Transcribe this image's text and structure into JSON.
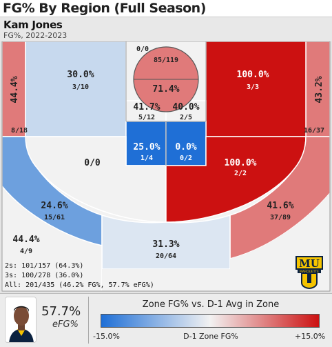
{
  "title": "FG% By Region (Full Season)",
  "player": {
    "name": "Kam Jones",
    "subtitle": "FG%, 2022-2023"
  },
  "zones": [
    {
      "id": "left-corner",
      "pct": "44.4%",
      "frac": "8/18",
      "color": "#e07a7a",
      "text": "#222"
    },
    {
      "id": "left-wing-upper",
      "pct": "30.0%",
      "frac": "3/10",
      "color": "#c7d9ee",
      "text": "#222"
    },
    {
      "id": "top-small",
      "pct": "",
      "frac": "0/0",
      "color": "#f2f2f2",
      "text": "#222"
    },
    {
      "id": "rim",
      "pct": "71.4%",
      "frac": "85/119",
      "color": "#e07a7a",
      "text": "#222"
    },
    {
      "id": "right-wing-upper",
      "pct": "100.0%",
      "frac": "3/3",
      "color": "#cc1111",
      "text": "#ffffff"
    },
    {
      "id": "right-corner",
      "pct": "43.2%",
      "frac": "16/37",
      "color": "#e07a7a",
      "text": "#222"
    },
    {
      "id": "paint-left",
      "pct": "41.7%",
      "frac": "5/12",
      "color": "#f2f2f2",
      "text": "#222"
    },
    {
      "id": "paint-right",
      "pct": "40.0%",
      "frac": "2/5",
      "color": "#f2f2f2",
      "text": "#222"
    },
    {
      "id": "mid-left",
      "pct": "25.0%",
      "frac": "1/4",
      "color": "#1f6fd6",
      "text": "#ffffff"
    },
    {
      "id": "mid-right",
      "pct": "0.0%",
      "frac": "0/2",
      "color": "#1f6fd6",
      "text": "#ffffff"
    },
    {
      "id": "left-elbow",
      "pct": "",
      "frac": "0/0",
      "color": "#f2f2f2",
      "text": "#222"
    },
    {
      "id": "right-elbow",
      "pct": "100.0%",
      "frac": "2/2",
      "color": "#cc1111",
      "text": "#ffffff"
    },
    {
      "id": "left-wing-three",
      "pct": "24.6%",
      "frac": "15/61",
      "color": "#6da0de",
      "text": "#222"
    },
    {
      "id": "right-wing-three",
      "pct": "41.6%",
      "frac": "37/89",
      "color": "#e07a7a",
      "text": "#222"
    },
    {
      "id": "left-deep",
      "pct": "44.4%",
      "frac": "4/9",
      "color": "#f2f2f2",
      "text": "#222"
    },
    {
      "id": "top-three",
      "pct": "31.3%",
      "frac": "20/64",
      "color": "#dce6f2",
      "text": "#222"
    }
  ],
  "summary": {
    "twos": "2s: 101/157 (64.3%)",
    "threes": "3s: 100/278 (36.0%)",
    "all": "All: 201/435 (46.2% FG%, 57.7% eFG%)"
  },
  "efg": {
    "value": "57.7%",
    "label": "eFG%"
  },
  "legend": {
    "title": "Zone FG% vs. D-1 Avg in Zone",
    "min": "-15.0%",
    "mid": "D-1 Zone FG%",
    "max": "+15.0%",
    "low_color": "#1f6fd6",
    "mid_color": "#f2f2f2",
    "high_color": "#cc1111"
  },
  "logo": {
    "text": "MARQUETTE",
    "icon": "marquette-mu-logo"
  }
}
